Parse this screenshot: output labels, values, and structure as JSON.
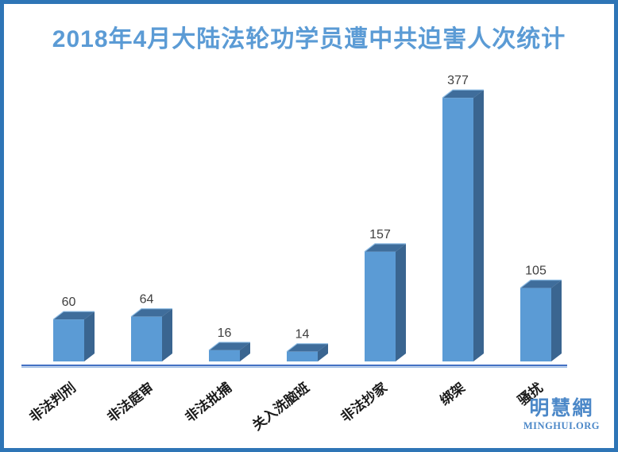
{
  "frame": {
    "border_color": "#2E75B6",
    "background": "#FFFFFF"
  },
  "title": {
    "text": "2018年4月大陆法轮功学员遭中共迫害人次统计",
    "color": "#5B9BD5"
  },
  "chart_data": {
    "type": "bar",
    "style": "3d",
    "title": "2018年4月大陆法轮功学员遭中共迫害人次统计",
    "categories": [
      "非法判刑",
      "非法庭审",
      "非法批捕",
      "关入洗脑班",
      "非法抄家",
      "绑架",
      "骚扰"
    ],
    "values": [
      60,
      64,
      16,
      14,
      157,
      377,
      105
    ],
    "xlabel": "",
    "ylabel": "",
    "ylim": [
      0,
      400
    ],
    "gridlines": false,
    "legend": "none",
    "data_labels": true,
    "category_label_rotation_deg": -38,
    "colors": {
      "front": "#5B9BD5",
      "top": "#3F6D9B",
      "side": "#3A6590",
      "bevel": "#8AB9E2",
      "axis": "#4472C4",
      "axis_light": "#9CBDE4",
      "value_label": "#404040",
      "category_label": "#1A1A1A"
    }
  },
  "logo": {
    "name": "明慧網",
    "domain": "MINGHUI.ORG",
    "color": "#4C88C8"
  }
}
